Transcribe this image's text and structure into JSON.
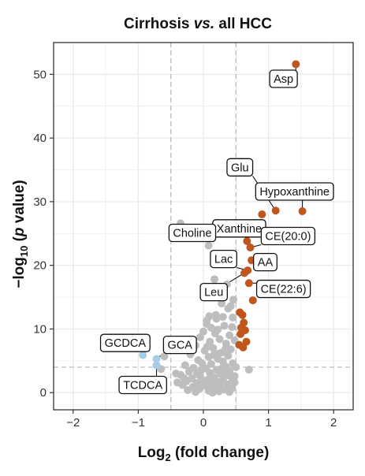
{
  "chart_data": {
    "type": "scatter",
    "title": {
      "prefix": "Cirrhosis ",
      "italic": "vs.",
      "suffix": " all HCC"
    },
    "xlabel": {
      "prefix": "Log",
      "sub": "2",
      "suffix": " (fold change)"
    },
    "ylabel": {
      "prefix": "−log",
      "sub": "10",
      "middle": " (",
      "italic": "p",
      "suffix": " value)"
    },
    "xlim": [
      -2.3,
      2.3
    ],
    "ylim": [
      -2.7,
      55
    ],
    "x_ticks": [
      -2,
      -1,
      0,
      1,
      2
    ],
    "x_tick_labels": [
      "−2",
      "−1",
      "0",
      "1",
      "2"
    ],
    "y_ticks": [
      0,
      10,
      20,
      30,
      40,
      50
    ],
    "y_tick_labels": [
      "0",
      "10",
      "20",
      "30",
      "40",
      "50"
    ],
    "grid": true,
    "vlines": [
      -0.5,
      0.5
    ],
    "hline": 4,
    "colors": {
      "up": "#C0561B",
      "down": "#A6CCE8",
      "ns": "#BEBEBE",
      "panel": "#FFFFFF",
      "grid": "#EBEBEB",
      "threshold": "#BDBDBD"
    },
    "series": [
      {
        "name": "up",
        "points": [
          [
            1.42,
            51.6
          ],
          [
            1.52,
            28.5
          ],
          [
            1.11,
            28.6
          ],
          [
            0.9,
            28.0
          ],
          [
            0.67,
            23.8
          ],
          [
            0.72,
            22.8
          ],
          [
            0.74,
            20.8
          ],
          [
            0.68,
            19.2
          ],
          [
            0.63,
            18.8
          ],
          [
            0.7,
            17.2
          ],
          [
            0.76,
            14.5
          ],
          [
            0.56,
            12.6
          ],
          [
            0.6,
            12.2
          ],
          [
            0.62,
            11.0
          ],
          [
            0.58,
            10.2
          ],
          [
            0.64,
            9.8
          ],
          [
            0.57,
            9.2
          ],
          [
            0.66,
            8.0
          ],
          [
            0.55,
            7.5
          ],
          [
            0.61,
            7.1
          ]
        ]
      },
      {
        "name": "down",
        "points": [
          [
            -0.93,
            5.9
          ],
          [
            -0.72,
            5.3
          ],
          [
            -0.72,
            4.3
          ]
        ]
      },
      {
        "name": "ns",
        "points": [
          [
            -0.35,
            26.6
          ],
          [
            0.08,
            23.1
          ],
          [
            0.27,
            20.5
          ],
          [
            0.17,
            17.8
          ],
          [
            0.36,
            17.0
          ],
          [
            0.46,
            14.6
          ],
          [
            0.42,
            13.6
          ],
          [
            0.28,
            14.0
          ],
          [
            0.38,
            13.2
          ],
          [
            0.05,
            11.3
          ],
          [
            0.45,
            11.8
          ],
          [
            0.2,
            11.6
          ],
          [
            -0.6,
            5.7
          ],
          [
            -0.65,
            3.7
          ],
          [
            0.7,
            3.6
          ],
          [
            -0.42,
            3.0
          ],
          [
            -0.3,
            2.3
          ],
          [
            0.05,
            10.8
          ],
          [
            0.12,
            10.2
          ],
          [
            0.32,
            10.5
          ],
          [
            0.0,
            9.6
          ],
          [
            0.18,
            9.3
          ],
          [
            0.4,
            9.0
          ],
          [
            -0.05,
            8.7
          ],
          [
            0.25,
            8.4
          ],
          [
            0.1,
            8.0
          ],
          [
            0.35,
            7.7
          ],
          [
            -0.12,
            7.4
          ],
          [
            0.15,
            7.0
          ],
          [
            0.42,
            6.8
          ],
          [
            0.02,
            6.6
          ],
          [
            0.28,
            6.3
          ],
          [
            -0.2,
            6.0
          ],
          [
            0.38,
            5.8
          ],
          [
            0.08,
            5.6
          ],
          [
            0.22,
            5.3
          ],
          [
            -0.08,
            5.1
          ],
          [
            0.3,
            4.9
          ],
          [
            0.45,
            4.6
          ],
          [
            0.12,
            4.5
          ],
          [
            -0.28,
            4.3
          ],
          [
            0.34,
            4.1
          ],
          [
            -0.15,
            3.9
          ],
          [
            0.04,
            3.8
          ],
          [
            0.2,
            3.6
          ],
          [
            0.4,
            3.4
          ],
          [
            -0.22,
            3.3
          ],
          [
            0.1,
            3.1
          ],
          [
            0.26,
            2.9
          ],
          [
            -0.35,
            2.8
          ],
          [
            0.36,
            2.7
          ],
          [
            -0.05,
            2.6
          ],
          [
            0.16,
            2.4
          ],
          [
            0.44,
            2.3
          ],
          [
            -0.18,
            2.2
          ],
          [
            0.06,
            2.0
          ],
          [
            0.3,
            1.9
          ],
          [
            -0.26,
            1.8
          ],
          [
            0.22,
            1.7
          ],
          [
            0.48,
            1.6
          ],
          [
            -0.1,
            1.5
          ],
          [
            0.12,
            1.4
          ],
          [
            0.38,
            1.3
          ],
          [
            -0.32,
            1.2
          ],
          [
            0.02,
            1.1
          ],
          [
            0.26,
            1.0
          ],
          [
            -0.16,
            0.9
          ],
          [
            0.18,
            0.8
          ],
          [
            0.44,
            0.7
          ],
          [
            -0.06,
            0.6
          ],
          [
            0.32,
            0.5
          ],
          [
            -0.24,
            0.4
          ],
          [
            0.08,
            0.3
          ],
          [
            0.24,
            0.2
          ],
          [
            0.4,
            0.1
          ],
          [
            -0.12,
            0.1
          ],
          [
            0.14,
            0.0
          ],
          [
            0.0,
            1.8
          ],
          [
            0.28,
            3.8
          ],
          [
            -0.02,
            4.6
          ],
          [
            0.16,
            5.9
          ],
          [
            0.34,
            6.9
          ],
          [
            0.48,
            8.2
          ],
          [
            0.06,
            7.2
          ],
          [
            0.22,
            9.9
          ],
          [
            0.44,
            10.3
          ],
          [
            -0.1,
            2.9
          ],
          [
            -0.4,
            1.6
          ],
          [
            0.5,
            4.0
          ],
          [
            0.48,
            2.6
          ],
          [
            0.19,
            12.2
          ],
          [
            0.09,
            12.0
          ],
          [
            0.3,
            11.9
          ],
          [
            0.13,
            1.0
          ],
          [
            -0.04,
            3.4
          ],
          [
            0.31,
            3.2
          ],
          [
            0.23,
            6.1
          ]
        ]
      }
    ],
    "annotations": [
      {
        "label": "Asp",
        "point": [
          1.42,
          51.6
        ],
        "box_center": [
          1.23,
          49.3
        ]
      },
      {
        "label": "Glu",
        "point": [
          1.11,
          28.6
        ],
        "box_center": [
          0.56,
          35.4
        ]
      },
      {
        "label": "Hypoxanthine",
        "point": [
          1.52,
          28.5
        ],
        "box_center": [
          1.4,
          31.6
        ]
      },
      {
        "label": "Xanthine",
        "point": [
          0.67,
          23.8
        ],
        "box_center": [
          0.55,
          25.8
        ]
      },
      {
        "label": "Choline",
        "point": [
          0.08,
          23.1
        ],
        "box_center": [
          -0.17,
          25.1
        ]
      },
      {
        "label": "CE(20:0)",
        "point": [
          0.72,
          22.8
        ],
        "box_center": [
          1.3,
          24.6
        ]
      },
      {
        "label": "Lac",
        "point": [
          0.68,
          19.2
        ],
        "box_center": [
          0.31,
          21.0
        ]
      },
      {
        "label": "AA",
        "point": [
          0.74,
          20.8
        ],
        "box_center": [
          0.95,
          20.5
        ]
      },
      {
        "label": "Leu",
        "point": [
          0.63,
          18.8
        ],
        "box_center": [
          0.16,
          15.8
        ]
      },
      {
        "label": "CE(22:6)",
        "point": [
          0.7,
          17.2
        ],
        "box_center": [
          1.23,
          16.3
        ]
      },
      {
        "label": "GCDCA",
        "point": [
          -0.93,
          5.9
        ],
        "box_center": [
          -1.2,
          7.8
        ]
      },
      {
        "label": "GCA",
        "point": [
          -0.72,
          5.3
        ],
        "box_center": [
          -0.36,
          7.5
        ]
      },
      {
        "label": "TCDCA",
        "point": [
          -0.72,
          4.3
        ],
        "box_center": [
          -0.93,
          1.2
        ]
      }
    ]
  }
}
